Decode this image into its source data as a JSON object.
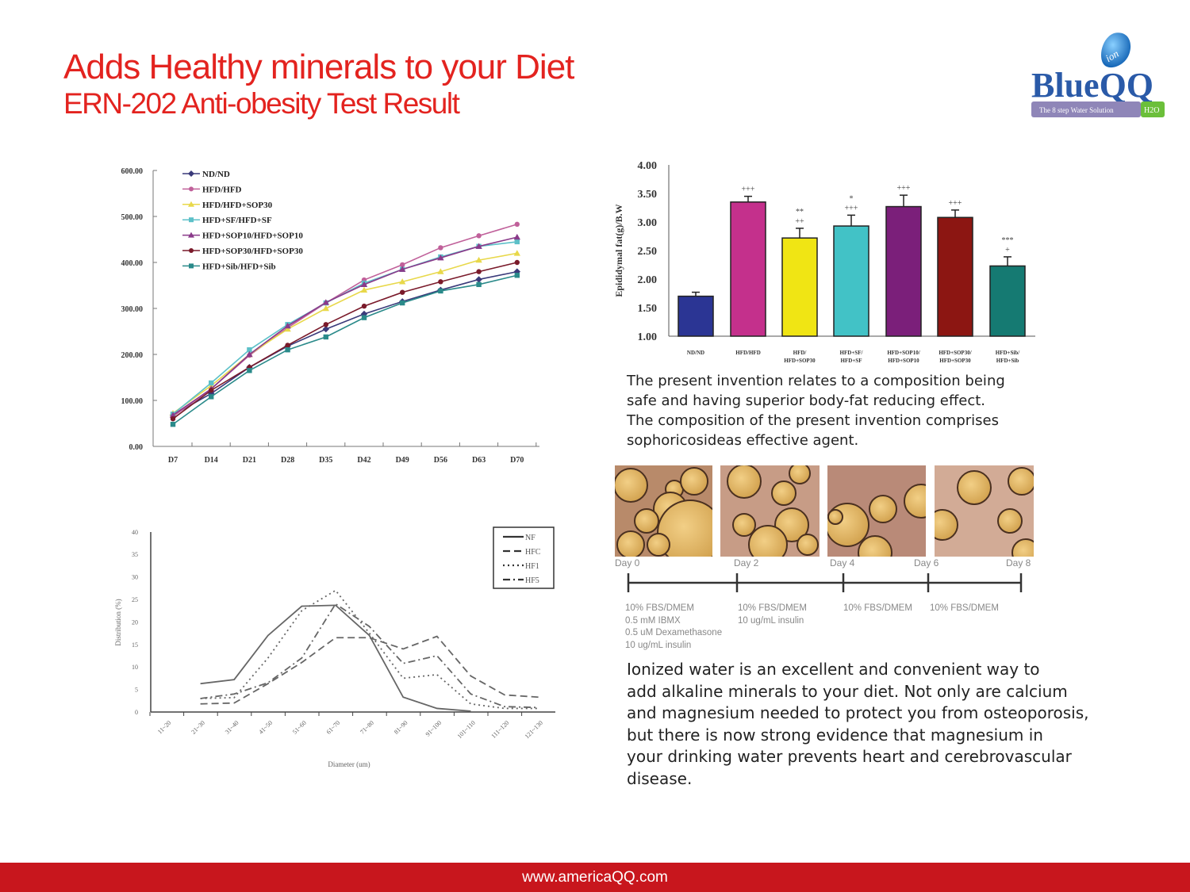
{
  "header": {
    "title": "Adds Healthy minerals to your Diet",
    "subtitle": "ERN-202 Anti-obesity Test Result"
  },
  "logo": {
    "brand": "BlueQQ",
    "badge": "ion",
    "tagline": "The 8 step Water Solution",
    "h2o": "H2O"
  },
  "colors": {
    "title": "#e3231f",
    "footer": "#c8161d"
  },
  "text": {
    "p1": "The present invention relates to a composition being\nsafe and having superior body-fat reducing effect.\nThe composition of the present invention comprises\nsophoricosideas effective agent.",
    "p2": "Ionized water is an excellent and convenient way to\nadd alkaline minerals to your diet. Not only are calcium\nand magnesium needed to protect you from osteoporosis,\nbut there is now strong evidence that magnesium in\nyour drinking water prevents heart and cerebrovascular\ndisease."
  },
  "timeline": {
    "days": [
      "Day 0",
      "Day 2",
      "Day 4",
      "Day 6",
      "Day 8"
    ],
    "media": [
      "10% FBS/DMEM\n0.5 mM IBMX\n0.5 uM Dexamethasone\n10 ug/mL insulin",
      "10% FBS/DMEM\n10 ug/mL insulin",
      "10% FBS/DMEM",
      "10% FBS/DMEM"
    ]
  },
  "footer": {
    "url": "www.americaQQ.com"
  },
  "chart_data": [
    {
      "type": "line",
      "title": "",
      "xlabel": "",
      "ylabel": "",
      "ylim": [
        0,
        600
      ],
      "yticks": [
        "0.00",
        "100.00",
        "200.00",
        "300.00",
        "400.00",
        "500.00",
        "600.00"
      ],
      "categories": [
        "D7",
        "D14",
        "D21",
        "D28",
        "D35",
        "D42",
        "D49",
        "D56",
        "D63",
        "D70"
      ],
      "legend": "top-left",
      "series": [
        {
          "name": "ND/ND",
          "color": "#3a3a7a",
          "marker": "diamond",
          "values": [
            68,
            115,
            172,
            218,
            255,
            288,
            315,
            340,
            363,
            380
          ]
        },
        {
          "name": "HFD/HFD",
          "color": "#c0609a",
          "marker": "circle",
          "values": [
            65,
            125,
            198,
            258,
            312,
            362,
            395,
            432,
            458,
            483
          ]
        },
        {
          "name": "HFD/HFD+SOP30",
          "color": "#e8d84a",
          "marker": "triangle",
          "values": [
            72,
            132,
            200,
            255,
            300,
            340,
            358,
            380,
            405,
            420
          ]
        },
        {
          "name": "HFD+SF/HFD+SF",
          "color": "#5cc0c8",
          "marker": "square",
          "values": [
            70,
            138,
            210,
            265,
            312,
            355,
            385,
            412,
            435,
            445
          ]
        },
        {
          "name": "HFD+SOP10/HFD+SOP10",
          "color": "#8a3a8a",
          "marker": "triangle",
          "values": [
            68,
            125,
            200,
            262,
            313,
            352,
            385,
            410,
            435,
            455
          ]
        },
        {
          "name": "HFD+SOP30/HFD+SOP30",
          "color": "#7a1a2a",
          "marker": "circle",
          "values": [
            60,
            122,
            172,
            220,
            265,
            305,
            335,
            358,
            380,
            400
          ]
        },
        {
          "name": "HFD+Sib/HFD+Sib",
          "color": "#2a8a8a",
          "marker": "square",
          "values": [
            48,
            108,
            165,
            210,
            238,
            280,
            312,
            338,
            352,
            372
          ]
        }
      ]
    },
    {
      "type": "bar",
      "title": "",
      "xlabel": "",
      "ylabel": "Epididymal fat(g)/B.W",
      "ylim": [
        1,
        4
      ],
      "yticks": [
        "1.00",
        "1.50",
        "2.00",
        "2.50",
        "3.00",
        "3.50",
        "4.00"
      ],
      "categories": [
        [
          "ND/ND"
        ],
        [
          "HFD/HFD"
        ],
        [
          "HFD/",
          "HFD+SOP30"
        ],
        [
          "HFD+SF/",
          "HFD+SF"
        ],
        [
          "HFD+SOP10/",
          "HFD+SOP10"
        ],
        [
          "HFD+SOP30/",
          "HFD+SOP30"
        ],
        [
          "HFD+Sib/",
          "HFD+Sib"
        ]
      ],
      "values": [
        1.7,
        3.35,
        2.72,
        2.93,
        3.27,
        3.08,
        2.23
      ],
      "errors": [
        0.07,
        0.1,
        0.17,
        0.19,
        0.2,
        0.13,
        0.16
      ],
      "annotations": [
        [],
        [
          "+++"
        ],
        [
          "**",
          "++"
        ],
        [
          "*",
          "+++"
        ],
        [
          "+++"
        ],
        [
          "+++"
        ],
        [
          "***",
          "+"
        ]
      ],
      "colors": [
        "#2b3594",
        "#c4308c",
        "#f0e514",
        "#42c2c6",
        "#7b1f7a",
        "#8c1612",
        "#157a72"
      ]
    },
    {
      "type": "line",
      "title": "",
      "xlabel": "Diameter (um)",
      "ylabel": "Distribution (%)",
      "ylim": [
        0,
        40
      ],
      "yticks": [
        "0",
        "5",
        "10",
        "15",
        "20",
        "25",
        "30",
        "35",
        "40"
      ],
      "categories": [
        "11~20",
        "21~30",
        "31~40",
        "41~50",
        "51~60",
        "61~70",
        "71~80",
        "81~90",
        "91~100",
        "101~110",
        "111~120",
        "121~130"
      ],
      "legend": "top-right",
      "series": [
        {
          "name": "NF",
          "style": "solid",
          "values": [
            null,
            6.3,
            7.2,
            17,
            23.5,
            23.7,
            17,
            3.3,
            0.8,
            0.2,
            null,
            null
          ]
        },
        {
          "name": "HFC",
          "style": "dashed",
          "values": [
            null,
            1.8,
            2,
            6.3,
            11,
            16.5,
            16.5,
            14,
            16.8,
            8,
            3.8,
            3.3
          ]
        },
        {
          "name": "HF1",
          "style": "dotted",
          "values": [
            null,
            3,
            3.2,
            12,
            22.5,
            27,
            17.5,
            7.5,
            8.3,
            1.8,
            0.8,
            0.8
          ]
        },
        {
          "name": "HF5",
          "style": "dashdot",
          "values": [
            null,
            3,
            4,
            6.5,
            12,
            24,
            19,
            10.8,
            12.5,
            4,
            1.2,
            1
          ]
        }
      ]
    }
  ]
}
